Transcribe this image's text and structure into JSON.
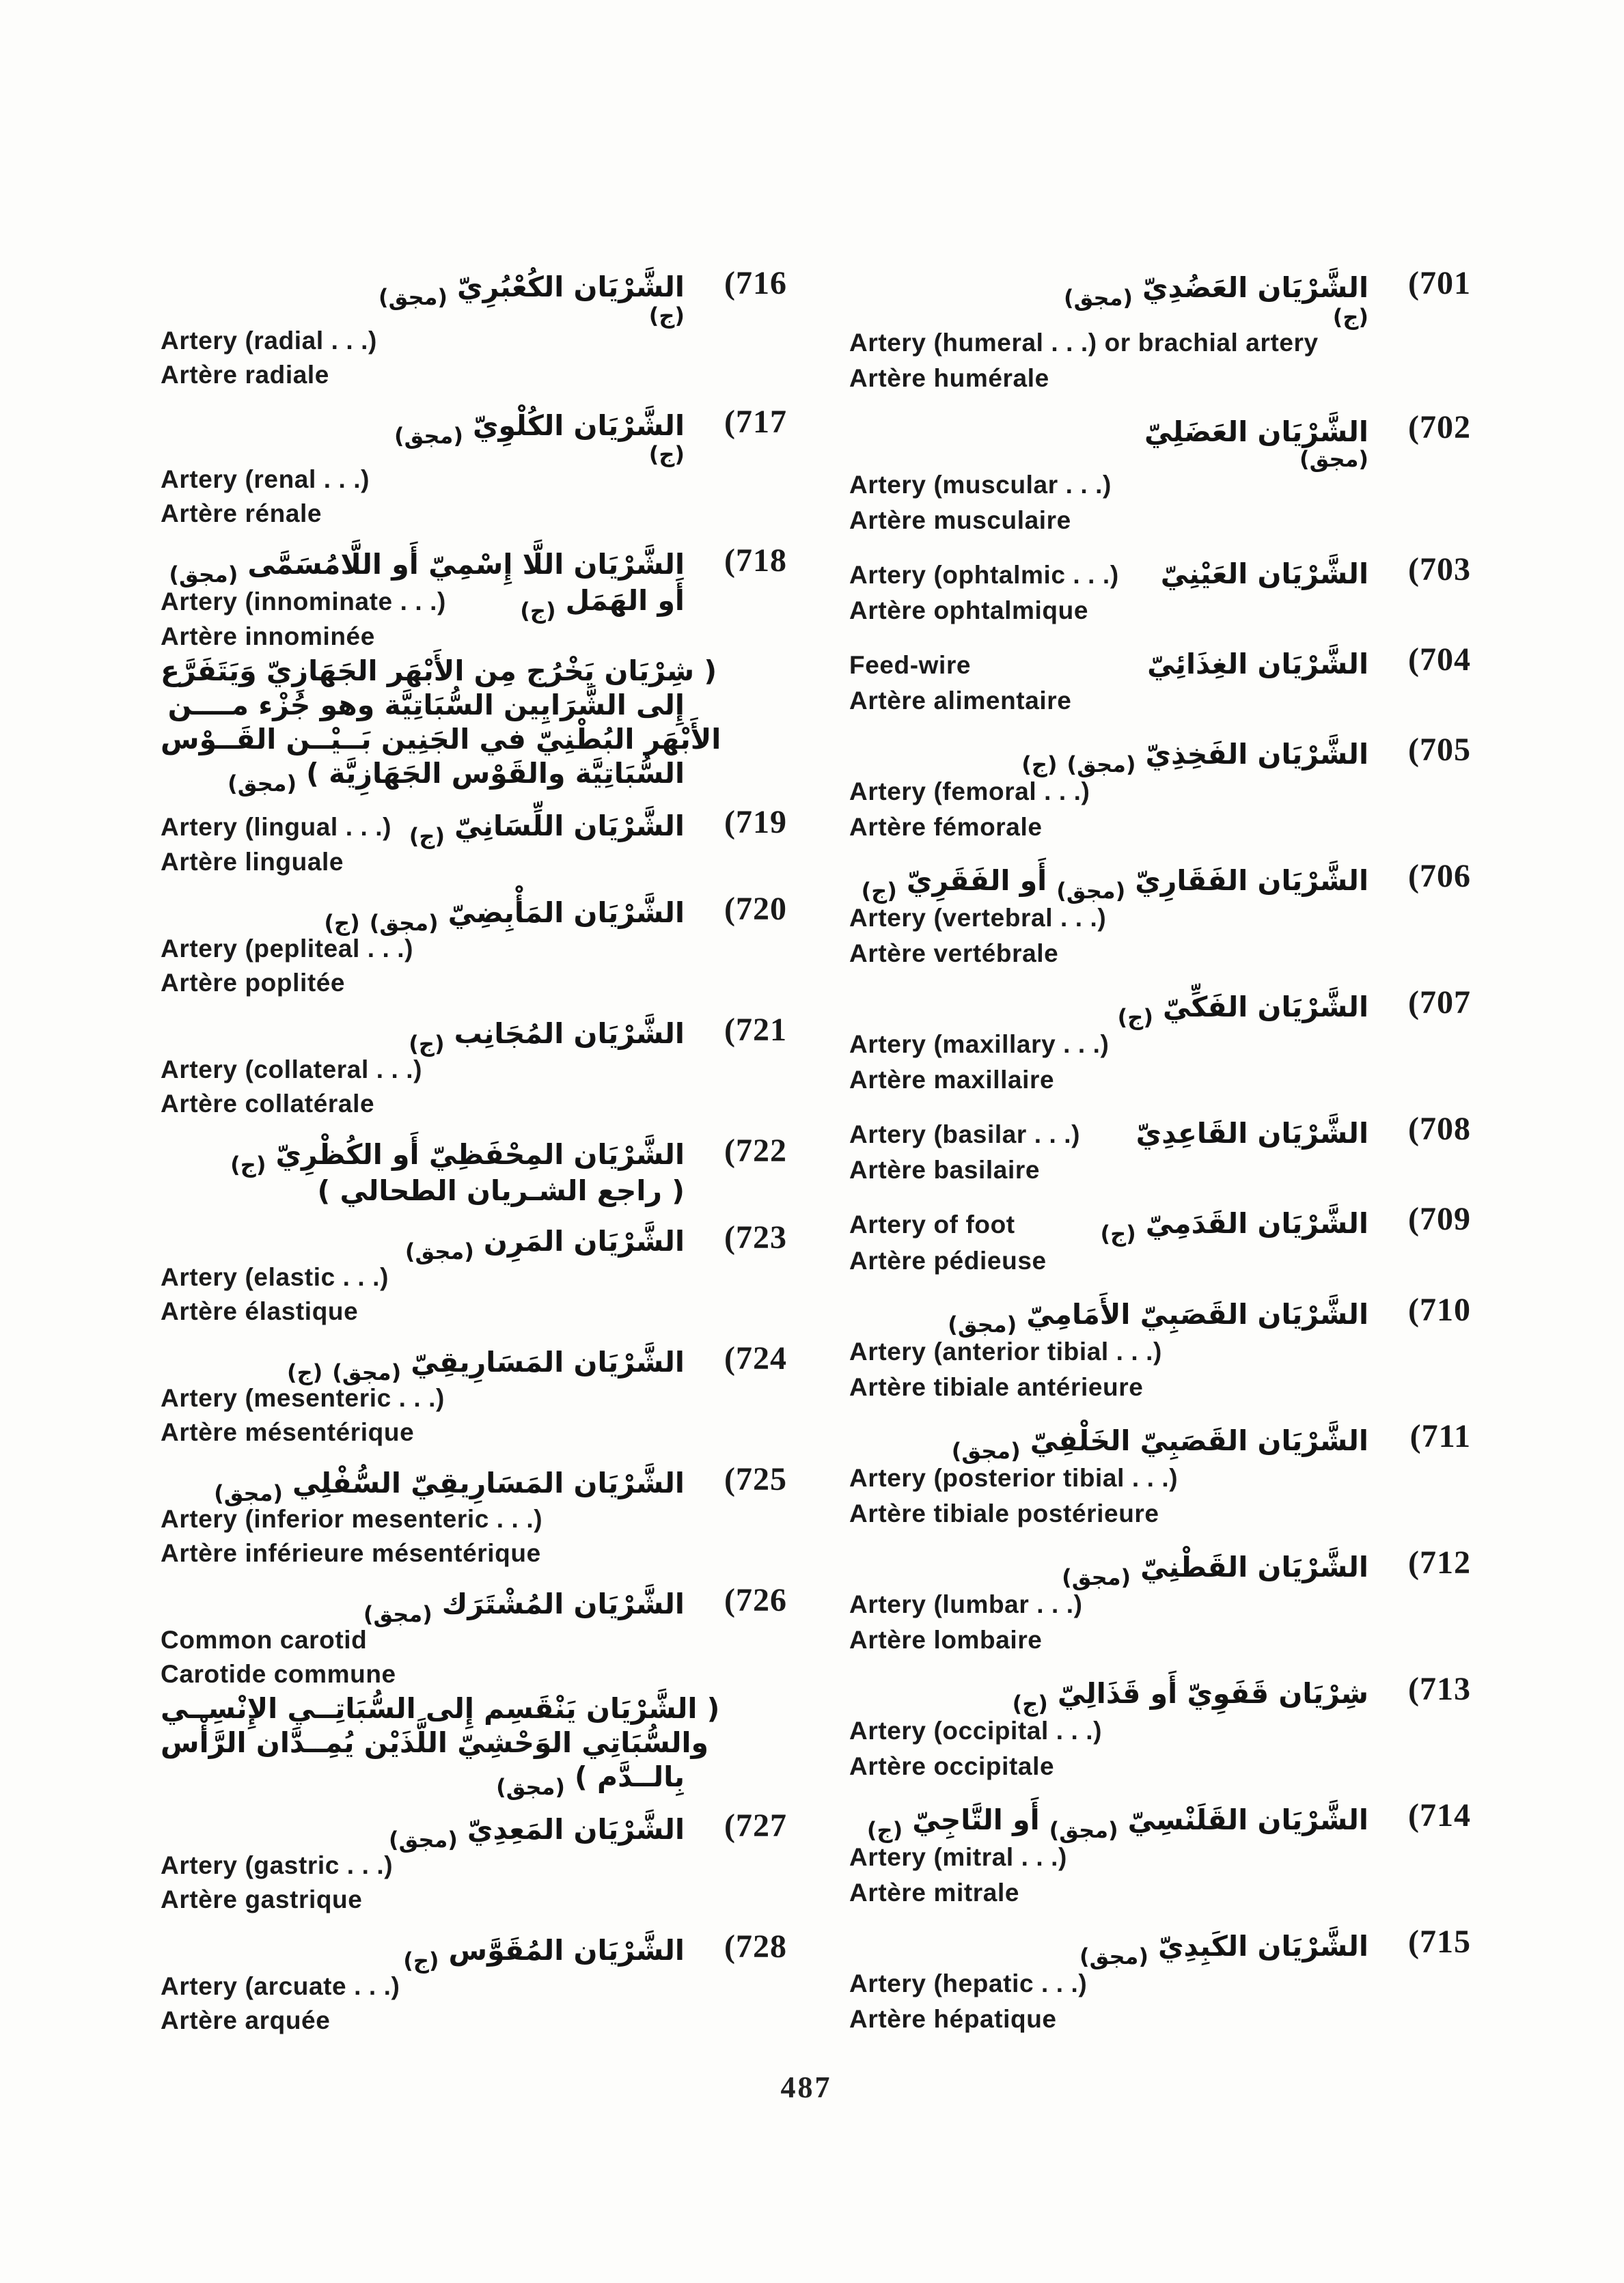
{
  "page_number": "487",
  "columns": [
    {
      "side": "left",
      "entries": [
        {
          "num": "(716",
          "lines": [
            {
              "ar": [
                {
                  "t": "الشَّرْيَان الكُعْبُرِيّ"
                },
                {
                  "t": "(مجق)",
                  "tag": true
                }
              ]
            },
            {
              "small": true,
              "ar": [
                {
                  "t": "(ج)",
                  "tag": true
                }
              ]
            },
            {
              "en": "Artery (radial . . .)"
            },
            {
              "fr": "Artère radiale"
            }
          ]
        },
        {
          "num": "(717",
          "lines": [
            {
              "ar": [
                {
                  "t": "الشَّرْيَان الكُلْوِيّ"
                },
                {
                  "t": "(مجق)",
                  "tag": true
                }
              ]
            },
            {
              "small": true,
              "ar": [
                {
                  "t": "(ج)",
                  "tag": true
                }
              ]
            },
            {
              "en": "Artery (renal . . .)"
            },
            {
              "fr": "Artère rénale"
            }
          ]
        },
        {
          "num": "(718",
          "lines": [
            {
              "ar": [
                {
                  "t": "الشَّرْيَان اللَّا إِسْمِيّ أَو اللَّامُسَمَّى"
                },
                {
                  "t": "(مجق)",
                  "tag": true
                }
              ]
            },
            {
              "en": "Artery (innominate . . .)",
              "ar": [
                {
                  "t": "أَو الهَمَل"
                },
                {
                  "t": "(ج)",
                  "tag": true
                }
              ]
            },
            {
              "fr": "Artère innominée"
            },
            {
              "note": true,
              "ar": [
                {
                  "t": "( شِرْيَان يَخْرُج مِن الأَبْهَر الجَهَازِيّ وَيَتَفَرَّع"
                }
              ]
            },
            {
              "note": true,
              "ar": [
                {
                  "t": "إِلى الشَّرَايِين السُّبَاتِيَّة وهو جُزْء مــــن"
                }
              ]
            },
            {
              "note": true,
              "ar": [
                {
                  "t": "الأَبْهَر البُطْنِيّ في الجَنِين بَــيْــن القَــوْس"
                }
              ]
            },
            {
              "note": true,
              "ar": [
                {
                  "t": "السُّبَاتِيَّة والقَوْس الجَهَازِيَّة )"
                },
                {
                  "t": "(مجق)",
                  "tag": true
                }
              ]
            }
          ]
        },
        {
          "num": "(719",
          "lines": [
            {
              "en": "Artery (lingual . . .)",
              "ar": [
                {
                  "t": "الشَّرْيَان اللِّسَانِيّ"
                },
                {
                  "t": "(ج)",
                  "tag": true
                }
              ]
            },
            {
              "fr": "Artère linguale"
            }
          ]
        },
        {
          "num": "(720",
          "lines": [
            {
              "ar": [
                {
                  "t": "الشَّرْيَان المَأْبِضِيّ"
                },
                {
                  "t": "(مجق)",
                  "tag": true
                },
                {
                  "t": "(ج)",
                  "tag": true
                }
              ]
            },
            {
              "en": "Artery (pepliteal . . .)"
            },
            {
              "fr": "Artère poplitée"
            }
          ]
        },
        {
          "num": "(721",
          "lines": [
            {
              "ar": [
                {
                  "t": "الشَّرْيَان المُجَانِب"
                },
                {
                  "t": "(ج)",
                  "tag": true
                }
              ]
            },
            {
              "en": "Artery (collateral . . .)"
            },
            {
              "fr": "Artère collatérale"
            }
          ]
        },
        {
          "num": "(722",
          "lines": [
            {
              "ar": [
                {
                  "t": "الشَّرْيَان المِحْفَظِيّ أَو الكُظْرِيّ"
                },
                {
                  "t": "(ج)",
                  "tag": true
                }
              ]
            },
            {
              "note": true,
              "ar": [
                {
                  "t": "( راجع الشـريان الطحالي )"
                }
              ]
            }
          ]
        },
        {
          "num": "(723",
          "lines": [
            {
              "ar": [
                {
                  "t": "الشَّرْيَان المَرِن"
                },
                {
                  "t": "(مجق)",
                  "tag": true
                }
              ]
            },
            {
              "en": "Artery (elastic . . .)"
            },
            {
              "fr": "Artère élastique"
            }
          ]
        },
        {
          "num": "(724",
          "lines": [
            {
              "ar": [
                {
                  "t": "الشَّرْيَان المَسَارِيقِيّ"
                },
                {
                  "t": "(مجق)",
                  "tag": true
                },
                {
                  "t": "(ج)",
                  "tag": true
                }
              ]
            },
            {
              "en": "Artery (mesenteric . . .)"
            },
            {
              "fr": "Artère mésentérique"
            }
          ]
        },
        {
          "num": "(725",
          "lines": [
            {
              "ar": [
                {
                  "t": "الشَّرْيَان المَسَارِيقِيّ السُّفْلِي"
                },
                {
                  "t": "(مجق)",
                  "tag": true
                }
              ]
            },
            {
              "en": "Artery (inferior mesenteric . . .)"
            },
            {
              "fr": "Artère inférieure mésentérique"
            }
          ]
        },
        {
          "num": "(726",
          "lines": [
            {
              "ar": [
                {
                  "t": "الشَّرْيَان المُشْتَرَك"
                },
                {
                  "t": "(مجق)",
                  "tag": true
                }
              ]
            },
            {
              "en": "Common carotid"
            },
            {
              "fr": "Carotide commune"
            },
            {
              "note": true,
              "ar": [
                {
                  "t": "( الشَّرْيَان يَنْقَسِم إِلى السُّبَاتِــي الإِنْسِــي"
                }
              ]
            },
            {
              "note": true,
              "ar": [
                {
                  "t": "والسُّبَاتِي الوَحْشِيّ اللَّذَيْن يُمِــدَّان الرَّأْس"
                }
              ]
            },
            {
              "note": true,
              "ar": [
                {
                  "t": "بِالــدَّم )"
                },
                {
                  "t": "(مجق)",
                  "tag": true
                }
              ]
            }
          ]
        },
        {
          "num": "(727",
          "lines": [
            {
              "ar": [
                {
                  "t": "الشَّرْيَان المَعِدِيّ"
                },
                {
                  "t": "(مجق)",
                  "tag": true
                }
              ]
            },
            {
              "en": "Artery (gastric . . .)"
            },
            {
              "fr": "Artère gastrique"
            }
          ]
        },
        {
          "num": "(728",
          "lines": [
            {
              "ar": [
                {
                  "t": "الشَّرْيَان المُقَوَّس"
                },
                {
                  "t": "(ج)",
                  "tag": true
                }
              ]
            },
            {
              "en": "Artery (arcuate . . .)"
            },
            {
              "fr": "Artère arquée"
            }
          ]
        }
      ]
    },
    {
      "side": "right",
      "entries": [
        {
          "num": "(701",
          "lines": [
            {
              "ar": [
                {
                  "t": "الشَّرْيَان العَضُدِيّ"
                },
                {
                  "t": "(مجق)",
                  "tag": true
                }
              ]
            },
            {
              "small": true,
              "ar": [
                {
                  "t": "(ج)",
                  "tag": true
                }
              ]
            },
            {
              "en": "Artery (humeral . . .) or brachial artery"
            },
            {
              "fr": "Artère humérale"
            }
          ]
        },
        {
          "num": "(702",
          "lines": [
            {
              "ar": [
                {
                  "t": "الشَّرْيَان العَضَلِيّ"
                }
              ]
            },
            {
              "small": true,
              "ar": [
                {
                  "t": "(مجق)",
                  "tag": true
                }
              ]
            },
            {
              "en": "Artery (muscular . . .)"
            },
            {
              "fr": "Artère musculaire"
            }
          ]
        },
        {
          "num": "(703",
          "lines": [
            {
              "en": "Artery (ophtalmic . . .)",
              "ar": [
                {
                  "t": "الشَّرْيَان العَيْنِيّ"
                }
              ]
            },
            {
              "fr": "Artère ophtalmique"
            }
          ]
        },
        {
          "num": "(704",
          "lines": [
            {
              "en": "Feed-wire",
              "ar": [
                {
                  "t": "الشَّرْيَان الغِذَائِيّ"
                }
              ]
            },
            {
              "fr": "Artère alimentaire"
            }
          ]
        },
        {
          "num": "(705",
          "lines": [
            {
              "ar": [
                {
                  "t": "الشَّرْيَان الفَخِذِيّ"
                },
                {
                  "t": "(مجق)",
                  "tag": true
                },
                {
                  "t": "(ج)",
                  "tag": true
                }
              ]
            },
            {
              "en": "Artery (femoral . . .)"
            },
            {
              "fr": "Artère fémorale"
            }
          ]
        },
        {
          "num": "(706",
          "lines": [
            {
              "ar": [
                {
                  "t": "الشَّرْيَان الفَقَارِيّ"
                },
                {
                  "t": "(مجق)",
                  "tag": true
                },
                {
                  "t": "أَو الفَقَرِيّ"
                },
                {
                  "t": "(ج)",
                  "tag": true
                }
              ]
            },
            {
              "en": "Artery (vertebral . . .)"
            },
            {
              "fr": "Artère vertébrale"
            }
          ]
        },
        {
          "num": "(707",
          "lines": [
            {
              "ar": [
                {
                  "t": "الشَّرْيَان الفَكِّيّ"
                },
                {
                  "t": "(ج)",
                  "tag": true
                }
              ]
            },
            {
              "en": "Artery (maxillary . . .)"
            },
            {
              "fr": "Artère maxillaire"
            }
          ]
        },
        {
          "num": "(708",
          "lines": [
            {
              "en": "Artery (basilar . . .)",
              "ar": [
                {
                  "t": "الشَّرْيَان القَاعِدِيّ"
                }
              ]
            },
            {
              "fr": "Artère basilaire"
            }
          ]
        },
        {
          "num": "(709",
          "lines": [
            {
              "en": "Artery of foot",
              "ar": [
                {
                  "t": "الشَّرْيَان القَدَمِيّ"
                },
                {
                  "t": "(ج)",
                  "tag": true
                }
              ]
            },
            {
              "fr": "Artère pédieuse"
            }
          ]
        },
        {
          "num": "(710",
          "lines": [
            {
              "ar": [
                {
                  "t": "الشَّرْيَان القَصَبِيّ الأَمَامِيّ"
                },
                {
                  "t": "(مجق)",
                  "tag": true
                }
              ]
            },
            {
              "en": "Artery (anterior tibial . . .)"
            },
            {
              "fr": "Artère tibiale antérieure"
            }
          ]
        },
        {
          "num": "(711",
          "lines": [
            {
              "ar": [
                {
                  "t": "الشَّرْيَان القَصَبِيّ الخَلْفِيّ"
                },
                {
                  "t": "(مجق)",
                  "tag": true
                }
              ]
            },
            {
              "en": "Artery (posterior tibial . . .)"
            },
            {
              "fr": "Artère tibiale postérieure"
            }
          ]
        },
        {
          "num": "(712",
          "lines": [
            {
              "ar": [
                {
                  "t": "الشَّرْيَان القَطْنِيّ"
                },
                {
                  "t": "(مجق)",
                  "tag": true
                }
              ]
            },
            {
              "en": "Artery (lumbar . . .)"
            },
            {
              "fr": "Artère lombaire"
            }
          ]
        },
        {
          "num": "(713",
          "lines": [
            {
              "ar": [
                {
                  "t": "شِرْيَان قَفَوِيّ أَو قَذَالِيّ"
                },
                {
                  "t": "(ج)",
                  "tag": true
                }
              ]
            },
            {
              "en": "Artery (occipital . . .)"
            },
            {
              "fr": "Artère occipitale"
            }
          ]
        },
        {
          "num": "(714",
          "lines": [
            {
              "ar": [
                {
                  "t": "الشَّرْيَان القَلَنْسِيّ"
                },
                {
                  "t": "(مجق)",
                  "tag": true
                },
                {
                  "t": "أَو التَّاجِيّ"
                },
                {
                  "t": "(ج)",
                  "tag": true
                }
              ]
            },
            {
              "en": "Artery (mitral . . .)"
            },
            {
              "fr": "Artère mitrale"
            }
          ]
        },
        {
          "num": "(715",
          "lines": [
            {
              "ar": [
                {
                  "t": "الشَّرْيَان الكَبِدِيّ"
                },
                {
                  "t": "(مجق)",
                  "tag": true
                }
              ]
            },
            {
              "en": "Artery (hepatic . . .)"
            },
            {
              "fr": "Artère hépatique"
            }
          ]
        }
      ]
    }
  ]
}
